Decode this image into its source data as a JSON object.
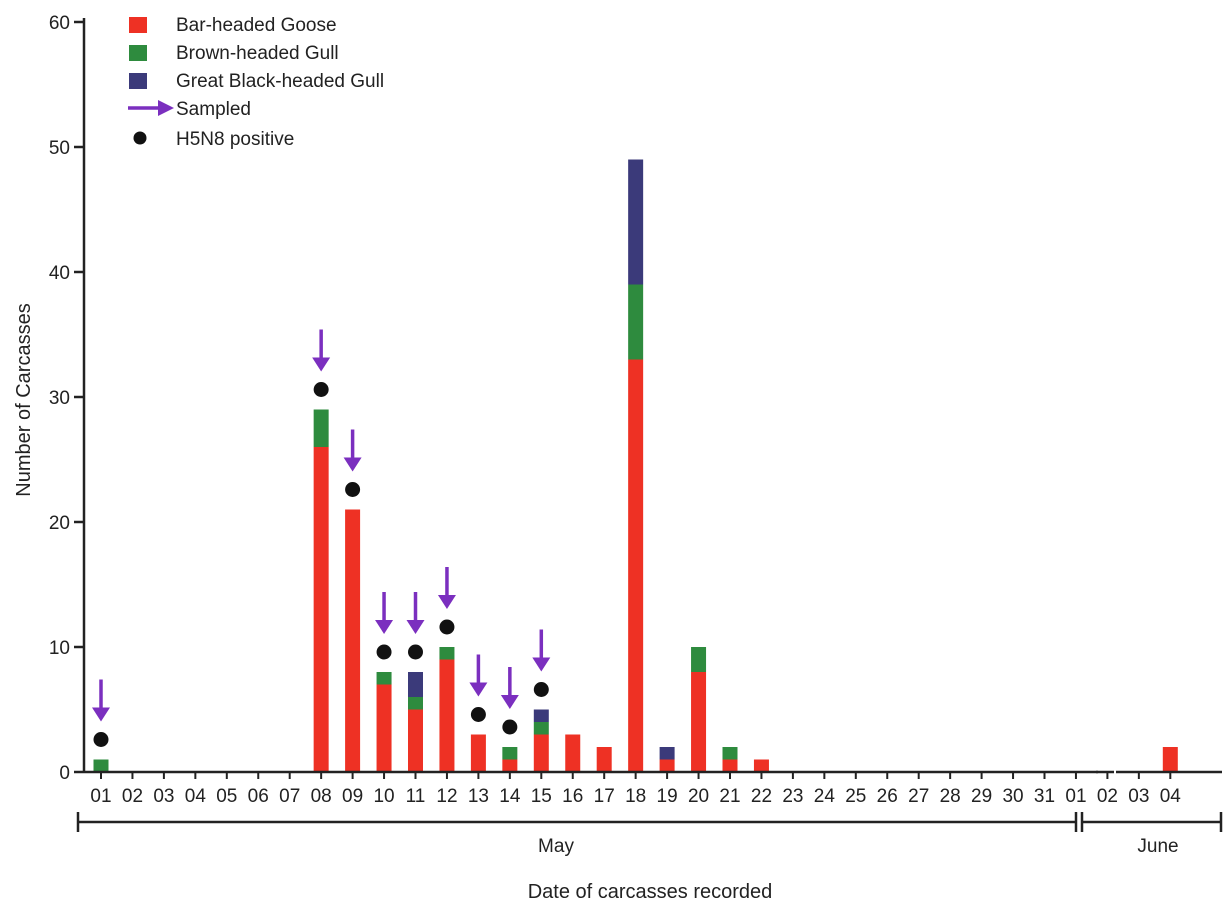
{
  "chart_data": {
    "type": "bar",
    "stacked": true,
    "title": "",
    "xlabel": "Date of carcasses recorded",
    "ylabel": "Number of Carcasses",
    "ylim": [
      0,
      60
    ],
    "yticks": [
      "0",
      "10",
      "20",
      "30",
      "40",
      "50",
      "60"
    ],
    "grid": false,
    "legend_position": "top-left",
    "categories": [
      "01",
      "02",
      "03",
      "04",
      "05",
      "06",
      "07",
      "08",
      "09",
      "10",
      "11",
      "12",
      "13",
      "14",
      "15",
      "16",
      "17",
      "18",
      "19",
      "20",
      "21",
      "22",
      "23",
      "24",
      "25",
      "26",
      "27",
      "28",
      "29",
      "30",
      "31",
      "01",
      "02",
      "03",
      "04"
    ],
    "months": [
      {
        "label": "May",
        "from_index": 0,
        "to_index": 30
      },
      {
        "label": "June",
        "from_index": 31,
        "to_index": 34
      }
    ],
    "series": [
      {
        "name": "Bar-headed Goose",
        "color": "#ee3124",
        "values": [
          0,
          0,
          0,
          0,
          0,
          0,
          0,
          26,
          21,
          7,
          5,
          9,
          3,
          1,
          3,
          3,
          2,
          33,
          1,
          8,
          1,
          1,
          0,
          0,
          0,
          0,
          0,
          0,
          0,
          0,
          0,
          0,
          0,
          0,
          2
        ]
      },
      {
        "name": "Brown-headed Gull",
        "color": "#2e8b3e",
        "values": [
          1,
          0,
          0,
          0,
          0,
          0,
          0,
          3,
          0,
          1,
          1,
          1,
          0,
          1,
          1,
          0,
          0,
          6,
          0,
          2,
          1,
          0,
          0,
          0,
          0,
          0,
          0,
          0,
          0,
          0,
          0,
          0,
          0,
          0,
          0
        ]
      },
      {
        "name": "Great Black-headed Gull",
        "color": "#3b3a7a",
        "values": [
          0,
          0,
          0,
          0,
          0,
          0,
          0,
          0,
          0,
          0,
          2,
          0,
          0,
          0,
          1,
          0,
          0,
          10,
          1,
          0,
          0,
          0,
          0,
          0,
          0,
          0,
          0,
          0,
          0,
          0,
          0,
          0,
          0,
          0,
          0
        ]
      }
    ],
    "markers": {
      "sampled": {
        "name": "Sampled",
        "color": "#7b2fbf",
        "category_indices": [
          0,
          7,
          8,
          9,
          10,
          11,
          12,
          13,
          14
        ]
      },
      "h5n8_positive": {
        "name": "H5N8 positive",
        "color": "#111111",
        "category_indices": [
          0,
          7,
          8,
          9,
          10,
          11,
          12,
          13,
          14
        ]
      }
    }
  }
}
